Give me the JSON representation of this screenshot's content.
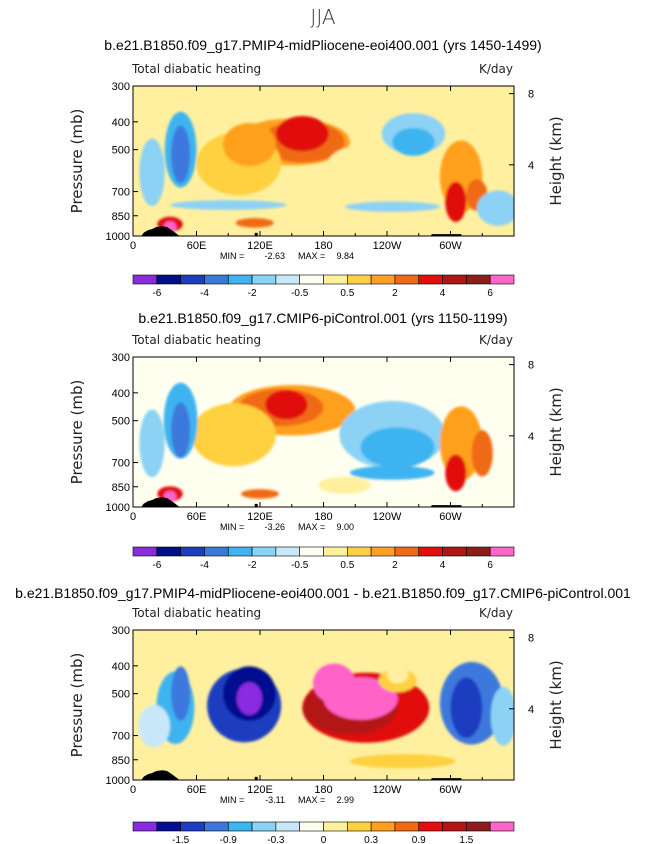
{
  "page_title": "JJA",
  "chart_data": [
    {
      "type": "heatmap",
      "title": "b.e21.B1850.f09_g17.PMIP4-midPliocene-eoi400.001 (yrs 1450-1499)",
      "left_label": "Total diabatic heating",
      "units": "K/day",
      "ylabel": "Pressure  (mb)",
      "ylabel_right": "Height  (km)",
      "x_ticks": [
        "0",
        "60E",
        "120E",
        "180",
        "120W",
        "60W"
      ],
      "x_tick_values": [
        0,
        60,
        120,
        180,
        240,
        300
      ],
      "xlim": [
        0,
        360
      ],
      "y_ticks": [
        "300",
        "400",
        "500",
        "700",
        "850",
        "1000"
      ],
      "y_tick_values": [
        300,
        400,
        500,
        700,
        850,
        1000
      ],
      "ylim": [
        1000,
        300
      ],
      "right_ticks": [
        "8",
        "4"
      ],
      "right_tick_values": [
        8,
        4
      ],
      "min_label": "MIN =",
      "min_value": "-2.63",
      "max_label": "MAX =",
      "max_value": "9.84",
      "colorbar_labels": [
        "-6",
        "-4",
        "-2",
        "-0.5",
        "0.5",
        "2",
        "4",
        "6"
      ],
      "colorbar_colors": [
        "#8a2be2",
        "#000f8f",
        "#1e3cc0",
        "#3c78dc",
        "#3cb4f0",
        "#8cd2f5",
        "#c8e8fa",
        "#fffff0",
        "#fff0a0",
        "#ffd040",
        "#ffa01e",
        "#f06a14",
        "#e10f0f",
        "#b41414",
        "#8c1e1e",
        "#ff64c8"
      ]
    },
    {
      "type": "heatmap",
      "title": "b.e21.B1850.f09_g17.CMIP6-piControl.001 (yrs 1150-1199)",
      "left_label": "Total diabatic heating",
      "units": "K/day",
      "ylabel": "Pressure  (mb)",
      "ylabel_right": "Height  (km)",
      "x_ticks": [
        "0",
        "60E",
        "120E",
        "180",
        "120W",
        "60W"
      ],
      "x_tick_values": [
        0,
        60,
        120,
        180,
        240,
        300
      ],
      "xlim": [
        0,
        360
      ],
      "y_ticks": [
        "300",
        "400",
        "500",
        "700",
        "850",
        "1000"
      ],
      "y_tick_values": [
        300,
        400,
        500,
        700,
        850,
        1000
      ],
      "ylim": [
        1000,
        300
      ],
      "right_ticks": [
        "8",
        "4"
      ],
      "right_tick_values": [
        8,
        4
      ],
      "min_label": "MIN =",
      "min_value": "-3.26",
      "max_label": "MAX =",
      "max_value": "9.00",
      "colorbar_labels": [
        "-6",
        "-4",
        "-2",
        "-0.5",
        "0.5",
        "2",
        "4",
        "6"
      ],
      "colorbar_colors": [
        "#8a2be2",
        "#000f8f",
        "#1e3cc0",
        "#3c78dc",
        "#3cb4f0",
        "#8cd2f5",
        "#c8e8fa",
        "#fffff0",
        "#fff0a0",
        "#ffd040",
        "#ffa01e",
        "#f06a14",
        "#e10f0f",
        "#b41414",
        "#8c1e1e",
        "#ff64c8"
      ]
    },
    {
      "type": "heatmap",
      "title": "b.e21.B1850.f09_g17.PMIP4-midPliocene-eoi400.001 - b.e21.B1850.f09_g17.CMIP6-piControl.001",
      "left_label": "Total diabatic heating",
      "units": "K/day",
      "ylabel": "Pressure  (mb)",
      "ylabel_right": "Height  (km)",
      "x_ticks": [
        "0",
        "60E",
        "120E",
        "180",
        "120W",
        "60W"
      ],
      "x_tick_values": [
        0,
        60,
        120,
        180,
        240,
        300
      ],
      "xlim": [
        0,
        360
      ],
      "y_ticks": [
        "300",
        "400",
        "500",
        "700",
        "850",
        "1000"
      ],
      "y_tick_values": [
        300,
        400,
        500,
        700,
        850,
        1000
      ],
      "ylim": [
        1000,
        300
      ],
      "right_ticks": [
        "8",
        "4"
      ],
      "right_tick_values": [
        8,
        4
      ],
      "min_label": "MIN =",
      "min_value": "-3.11",
      "max_label": "MAX =",
      "max_value": "2.99",
      "colorbar_labels": [
        "-1.5",
        "-0.9",
        "-0.3",
        "0",
        "0.3",
        "0.9",
        "1.5"
      ],
      "colorbar_colors": [
        "#8a2be2",
        "#000f8f",
        "#1e3cc0",
        "#3c78dc",
        "#3cb4f0",
        "#8cd2f5",
        "#c8e8fa",
        "#fffff0",
        "#fff0a0",
        "#ffd040",
        "#ffa01e",
        "#f06a14",
        "#e10f0f",
        "#b41414",
        "#8c1e1e",
        "#ff64c8"
      ]
    }
  ]
}
